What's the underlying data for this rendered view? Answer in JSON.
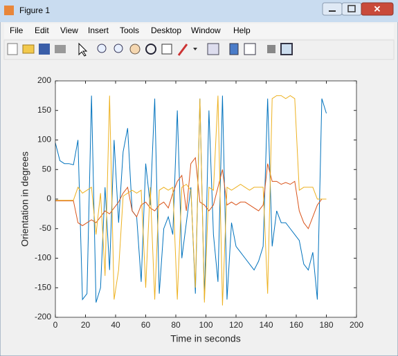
{
  "window": {
    "title": "Figure 1",
    "menu": [
      "File",
      "Edit",
      "View",
      "Insert",
      "Tools",
      "Desktop",
      "Window",
      "Help"
    ]
  },
  "chart_data": {
    "type": "line",
    "xlabel": "Time in seconds",
    "ylabel": "Orientation in degrees",
    "xlim": [
      0,
      200
    ],
    "ylim": [
      -200,
      200
    ],
    "xticks": [
      0,
      20,
      40,
      60,
      80,
      100,
      120,
      140,
      160,
      180,
      200
    ],
    "yticks": [
      -200,
      -150,
      -100,
      -50,
      0,
      50,
      100,
      150,
      200
    ],
    "x": [
      0,
      3,
      6,
      9,
      12,
      15,
      18,
      21,
      24,
      27,
      30,
      33,
      36,
      39,
      42,
      45,
      48,
      51,
      54,
      57,
      60,
      63,
      66,
      69,
      72,
      75,
      78,
      81,
      84,
      87,
      90,
      93,
      96,
      99,
      102,
      105,
      108,
      111,
      114,
      117,
      120,
      123,
      126,
      129,
      132,
      135,
      138,
      141,
      144,
      147,
      150,
      153,
      156,
      159,
      162,
      165,
      168,
      171,
      174,
      177,
      180
    ],
    "series": [
      {
        "color": "#0072bd",
        "values": [
          95,
          65,
          60,
          60,
          58,
          100,
          -170,
          -160,
          175,
          -175,
          -150,
          20,
          -120,
          100,
          -40,
          80,
          120,
          -20,
          -30,
          -140,
          60,
          -10,
          170,
          -160,
          -50,
          -30,
          -60,
          150,
          -100,
          -40,
          20,
          -160,
          170,
          -170,
          150,
          -60,
          -140,
          175,
          -170,
          -40,
          -80,
          -90,
          -100,
          -110,
          -120,
          -105,
          -80,
          170,
          -80,
          -20,
          -40,
          -40,
          -50,
          -60,
          -70,
          -110,
          -120,
          -90,
          -170,
          170,
          145
        ]
      },
      {
        "color": "#d95319",
        "values": [
          -3,
          -3,
          -3,
          -3,
          -3,
          -40,
          -45,
          -40,
          -35,
          -40,
          -30,
          -20,
          -25,
          -15,
          -5,
          10,
          20,
          -20,
          -30,
          -10,
          -5,
          -15,
          -20,
          -10,
          -5,
          -15,
          10,
          30,
          40,
          -20,
          60,
          70,
          -5,
          -10,
          -20,
          -10,
          20,
          50,
          -10,
          -5,
          -10,
          -5,
          -5,
          -10,
          -15,
          -20,
          -10,
          60,
          30,
          30,
          25,
          28,
          25,
          30,
          -20,
          -40,
          -50,
          -30,
          -10,
          0,
          0
        ]
      },
      {
        "color": "#edb120",
        "values": [
          -2,
          -2,
          -2,
          -2,
          -2,
          20,
          10,
          15,
          20,
          -60,
          10,
          -130,
          175,
          -170,
          -120,
          5,
          10,
          15,
          10,
          15,
          -150,
          20,
          -170,
          15,
          20,
          15,
          20,
          -170,
          20,
          25,
          15,
          -150,
          170,
          -175,
          20,
          15,
          175,
          -180,
          20,
          15,
          20,
          25,
          20,
          15,
          20,
          20,
          20,
          -160,
          170,
          175,
          175,
          170,
          175,
          170,
          15,
          20,
          20,
          20,
          0,
          0,
          0
        ]
      }
    ]
  }
}
